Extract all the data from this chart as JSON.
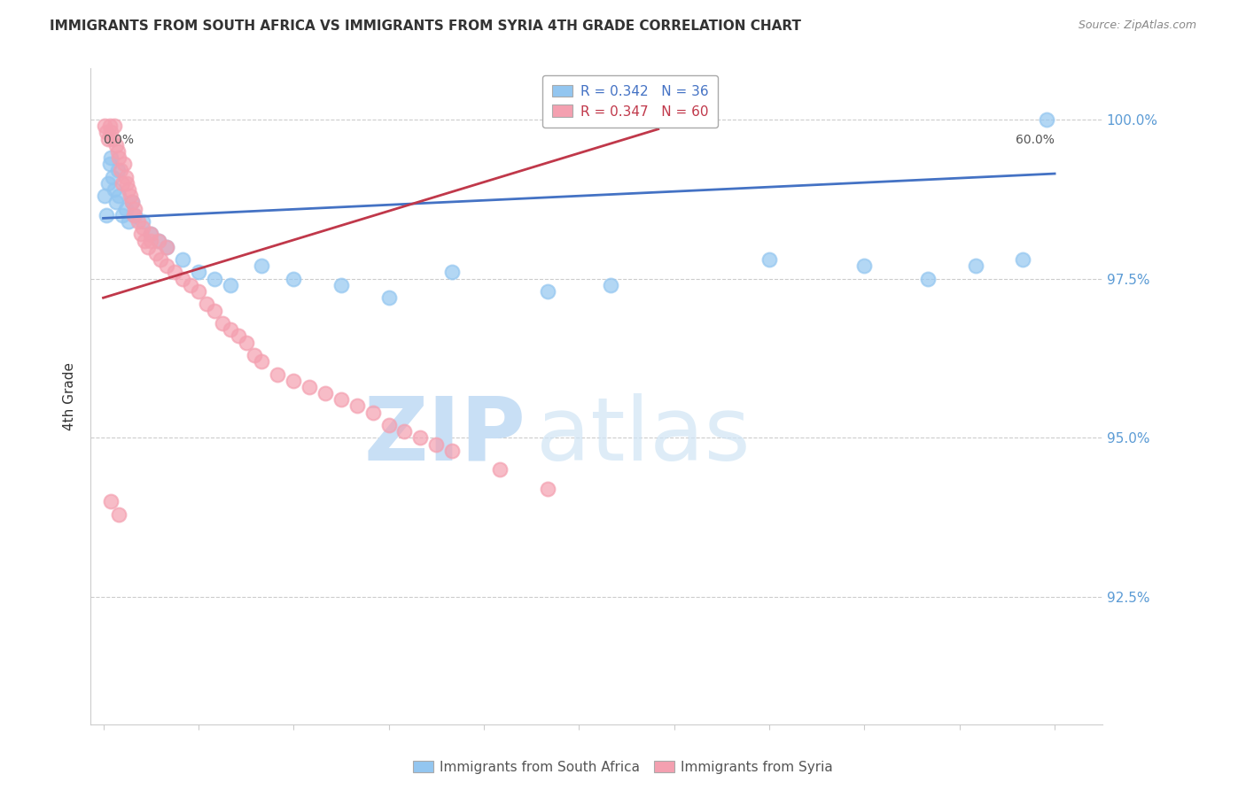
{
  "title": "IMMIGRANTS FROM SOUTH AFRICA VS IMMIGRANTS FROM SYRIA 4TH GRADE CORRELATION CHART",
  "source": "Source: ZipAtlas.com",
  "ylabel": "4th Grade",
  "ytick_labels": [
    "100.0%",
    "97.5%",
    "95.0%",
    "92.5%"
  ],
  "ytick_values": [
    1.0,
    0.975,
    0.95,
    0.925
  ],
  "ymin": 0.905,
  "ymax": 1.008,
  "xmin": -0.008,
  "xmax": 0.63,
  "legend_r_blue": "R = 0.342",
  "legend_n_blue": "N = 36",
  "legend_r_pink": "R = 0.347",
  "legend_n_pink": "N = 60",
  "legend_label_blue": "Immigrants from South Africa",
  "legend_label_pink": "Immigrants from Syria",
  "blue_color": "#93c6f0",
  "pink_color": "#f4a0b0",
  "trendline_blue": "#4472c4",
  "trendline_pink": "#c0384a",
  "sa_x": [
    0.001,
    0.002,
    0.003,
    0.004,
    0.005,
    0.006,
    0.007,
    0.008,
    0.009,
    0.01,
    0.012,
    0.014,
    0.016,
    0.018,
    0.02,
    0.025,
    0.03,
    0.035,
    0.04,
    0.05,
    0.06,
    0.07,
    0.08,
    0.1,
    0.12,
    0.15,
    0.18,
    0.22,
    0.28,
    0.32,
    0.42,
    0.48,
    0.52,
    0.55,
    0.58,
    0.595
  ],
  "sa_y": [
    0.988,
    0.985,
    0.99,
    0.993,
    0.994,
    0.991,
    0.989,
    0.987,
    0.992,
    0.988,
    0.985,
    0.986,
    0.984,
    0.987,
    0.985,
    0.984,
    0.982,
    0.981,
    0.98,
    0.978,
    0.976,
    0.975,
    0.974,
    0.977,
    0.975,
    0.974,
    0.972,
    0.976,
    0.973,
    0.974,
    0.978,
    0.977,
    0.975,
    0.977,
    0.978,
    1.0
  ],
  "sy_x": [
    0.001,
    0.002,
    0.003,
    0.004,
    0.005,
    0.006,
    0.007,
    0.008,
    0.009,
    0.01,
    0.011,
    0.012,
    0.013,
    0.014,
    0.015,
    0.016,
    0.017,
    0.018,
    0.019,
    0.02,
    0.022,
    0.024,
    0.026,
    0.028,
    0.03,
    0.033,
    0.036,
    0.04,
    0.045,
    0.05,
    0.055,
    0.06,
    0.065,
    0.07,
    0.075,
    0.08,
    0.085,
    0.09,
    0.095,
    0.1,
    0.11,
    0.12,
    0.13,
    0.14,
    0.15,
    0.16,
    0.17,
    0.18,
    0.19,
    0.2,
    0.21,
    0.22,
    0.25,
    0.28,
    0.03,
    0.025,
    0.035,
    0.04,
    0.005,
    0.01
  ],
  "sy_y": [
    0.999,
    0.998,
    0.997,
    0.999,
    0.998,
    0.997,
    0.999,
    0.996,
    0.995,
    0.994,
    0.992,
    0.99,
    0.993,
    0.991,
    0.99,
    0.989,
    0.988,
    0.987,
    0.985,
    0.986,
    0.984,
    0.982,
    0.981,
    0.98,
    0.981,
    0.979,
    0.978,
    0.977,
    0.976,
    0.975,
    0.974,
    0.973,
    0.971,
    0.97,
    0.968,
    0.967,
    0.966,
    0.965,
    0.963,
    0.962,
    0.96,
    0.959,
    0.958,
    0.957,
    0.956,
    0.955,
    0.954,
    0.952,
    0.951,
    0.95,
    0.949,
    0.948,
    0.945,
    0.942,
    0.982,
    0.983,
    0.981,
    0.98,
    0.94,
    0.938
  ],
  "trendline_sa_x0": 0.0,
  "trendline_sa_x1": 0.6,
  "trendline_sa_y0": 0.9845,
  "trendline_sa_y1": 0.9915,
  "trendline_sy_x0": 0.0,
  "trendline_sy_x1": 0.35,
  "trendline_sy_y0": 0.972,
  "trendline_sy_y1": 0.9985
}
